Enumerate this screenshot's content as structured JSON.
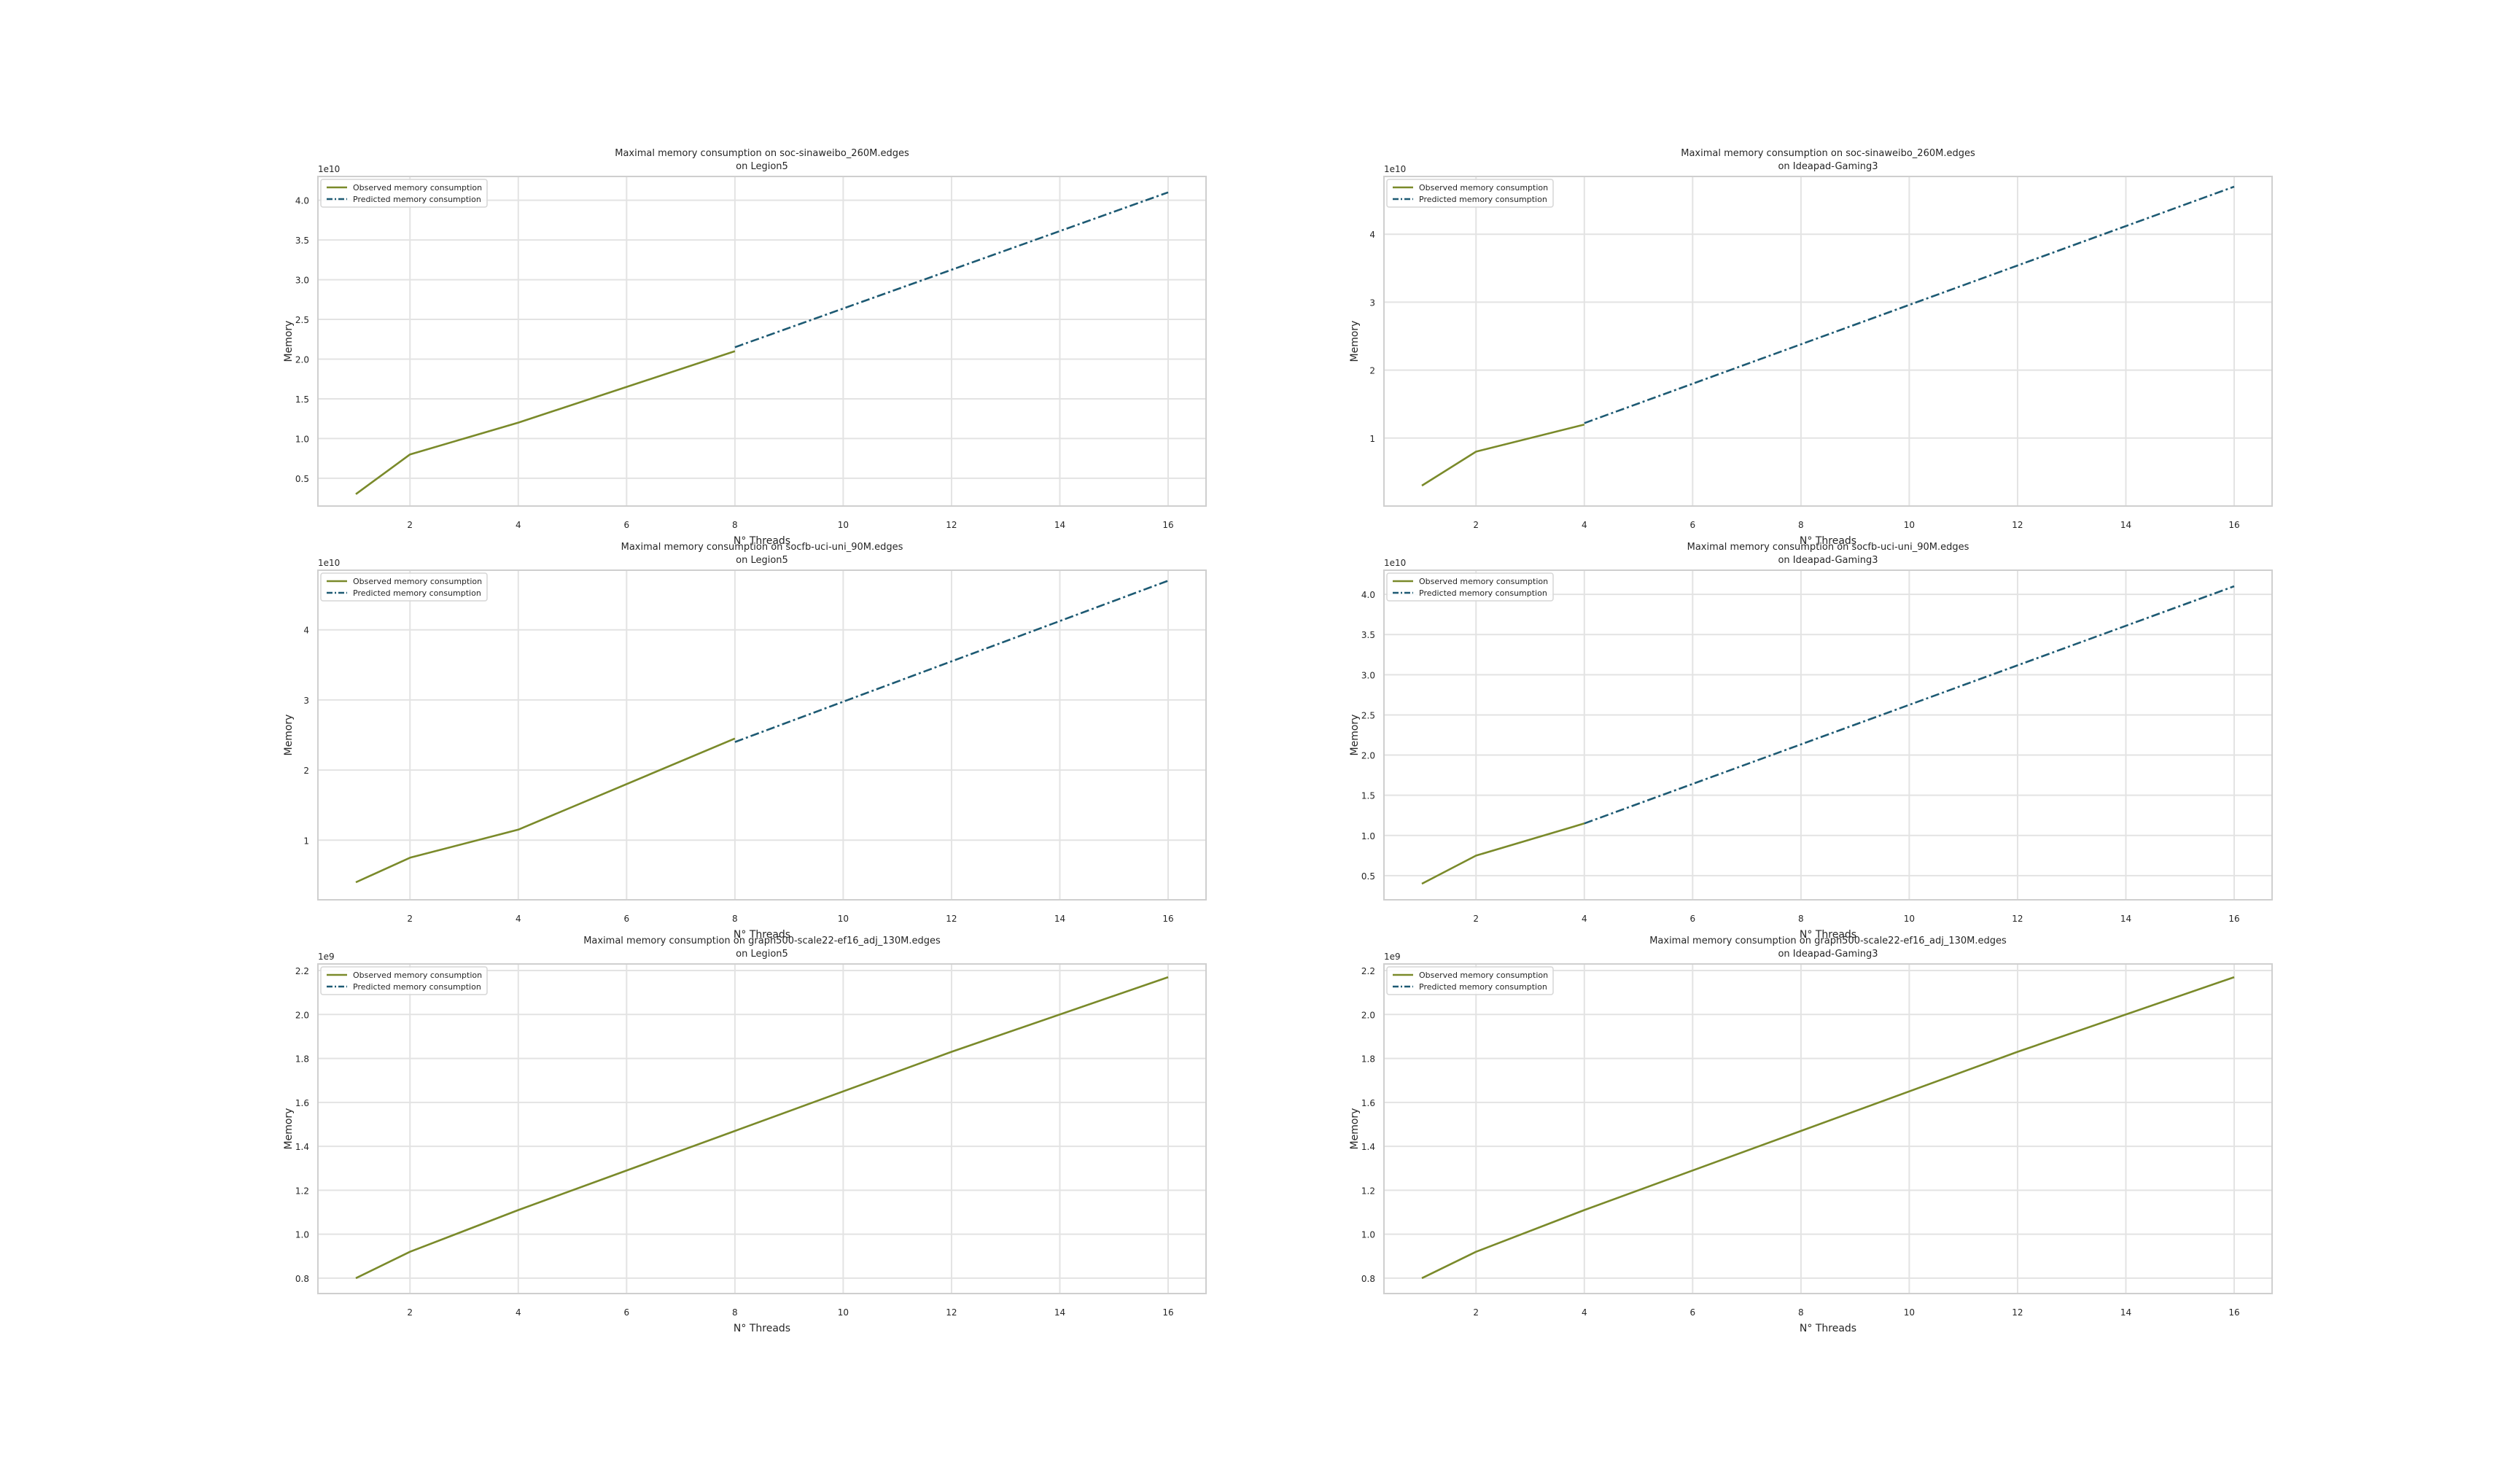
{
  "colors": {
    "observed": "#7a8a2a",
    "predicted": "#1d5a73",
    "grid": "#e3e3e3",
    "frame": "#cfcfcf",
    "text": "#262626"
  },
  "chart_data": [
    {
      "type": "line",
      "title": "Maximal memory consumption on soc-sinaweibo_260M.edges",
      "subtitle": "on Legion5",
      "xlabel": "N° Threads",
      "ylabel": "Memory",
      "offset_label": "1e10",
      "scale": 10000000000.0,
      "xlim": [
        0.3,
        16.7
      ],
      "ylim": [
        0.15,
        4.3
      ],
      "xticks": [
        2,
        4,
        6,
        8,
        10,
        12,
        14,
        16
      ],
      "yticks": [
        0.5,
        1.0,
        1.5,
        2.0,
        2.5,
        3.0,
        3.5,
        4.0
      ],
      "yticklabels": [
        "0.5",
        "1.0",
        "1.5",
        "2.0",
        "2.5",
        "3.0",
        "3.5",
        "4.0"
      ],
      "grid": true,
      "legend": "upper-left",
      "series": [
        {
          "name": "Observed memory consumption",
          "style": "solid",
          "x": [
            1,
            2,
            4,
            8
          ],
          "y": [
            0.3,
            0.8,
            1.2,
            2.1
          ]
        },
        {
          "name": "Predicted memory consumption",
          "style": "dashdot",
          "x": [
            8,
            16
          ],
          "y": [
            2.15,
            4.1
          ]
        }
      ]
    },
    {
      "type": "line",
      "title": "Maximal memory consumption on soc-sinaweibo_260M.edges",
      "subtitle": "on Ideapad-Gaming3",
      "xlabel": "N° Threads",
      "ylabel": "Memory",
      "offset_label": "1e10",
      "scale": 10000000000.0,
      "xlim": [
        0.3,
        16.7
      ],
      "ylim": [
        0.0,
        4.85
      ],
      "xticks": [
        2,
        4,
        6,
        8,
        10,
        12,
        14,
        16
      ],
      "yticks": [
        1,
        2,
        3,
        4
      ],
      "yticklabels": [
        "1",
        "2",
        "3",
        "4"
      ],
      "grid": true,
      "legend": "upper-left",
      "series": [
        {
          "name": "Observed memory consumption",
          "style": "solid",
          "x": [
            1,
            2,
            4
          ],
          "y": [
            0.3,
            0.8,
            1.2
          ]
        },
        {
          "name": "Predicted memory consumption",
          "style": "dashdot",
          "x": [
            4,
            16
          ],
          "y": [
            1.22,
            4.7
          ]
        }
      ]
    },
    {
      "type": "line",
      "title": "Maximal memory consumption on socfb-uci-uni_90M.edges",
      "subtitle": "on Legion5",
      "xlabel": "N° Threads",
      "ylabel": "Memory",
      "offset_label": "1e10",
      "scale": 10000000000.0,
      "xlim": [
        0.3,
        16.7
      ],
      "ylim": [
        0.15,
        4.85
      ],
      "xticks": [
        2,
        4,
        6,
        8,
        10,
        12,
        14,
        16
      ],
      "yticks": [
        1,
        2,
        3,
        4
      ],
      "yticklabels": [
        "1",
        "2",
        "3",
        "4"
      ],
      "grid": true,
      "legend": "upper-left",
      "series": [
        {
          "name": "Observed memory consumption",
          "style": "solid",
          "x": [
            1,
            2,
            4,
            8
          ],
          "y": [
            0.4,
            0.75,
            1.15,
            2.45
          ]
        },
        {
          "name": "Predicted memory consumption",
          "style": "dashdot",
          "x": [
            8,
            16
          ],
          "y": [
            2.4,
            4.7
          ]
        }
      ]
    },
    {
      "type": "line",
      "title": "Maximal memory consumption on socfb-uci-uni_90M.edges",
      "subtitle": "on Ideapad-Gaming3",
      "xlabel": "N° Threads",
      "ylabel": "Memory",
      "offset_label": "1e10",
      "scale": 10000000000.0,
      "xlim": [
        0.3,
        16.7
      ],
      "ylim": [
        0.2,
        4.3
      ],
      "xticks": [
        2,
        4,
        6,
        8,
        10,
        12,
        14,
        16
      ],
      "yticks": [
        0.5,
        1.0,
        1.5,
        2.0,
        2.5,
        3.0,
        3.5,
        4.0
      ],
      "yticklabels": [
        "0.5",
        "1.0",
        "1.5",
        "2.0",
        "2.5",
        "3.0",
        "3.5",
        "4.0"
      ],
      "grid": true,
      "legend": "upper-left",
      "series": [
        {
          "name": "Observed memory consumption",
          "style": "solid",
          "x": [
            1,
            2,
            4
          ],
          "y": [
            0.4,
            0.75,
            1.15
          ]
        },
        {
          "name": "Predicted memory consumption",
          "style": "dashdot",
          "x": [
            4,
            16
          ],
          "y": [
            1.15,
            4.1
          ]
        }
      ]
    },
    {
      "type": "line",
      "title": "Maximal memory consumption on graph500-scale22-ef16_adj_130M.edges",
      "subtitle": "on Legion5",
      "xlabel": "N° Threads",
      "ylabel": "Memory",
      "offset_label": "1e9",
      "scale": 1000000000.0,
      "xlim": [
        0.3,
        16.7
      ],
      "ylim": [
        0.73,
        2.23
      ],
      "xticks": [
        2,
        4,
        6,
        8,
        10,
        12,
        14,
        16
      ],
      "yticks": [
        0.8,
        1.0,
        1.2,
        1.4,
        1.6,
        1.8,
        2.0,
        2.2
      ],
      "yticklabels": [
        "0.8",
        "1.0",
        "1.2",
        "1.4",
        "1.6",
        "1.8",
        "2.0",
        "2.2"
      ],
      "grid": true,
      "legend": "upper-left",
      "series": [
        {
          "name": "Observed memory consumption",
          "style": "solid",
          "x": [
            1,
            2,
            4,
            8,
            12,
            16
          ],
          "y": [
            0.8,
            0.92,
            1.11,
            1.47,
            1.83,
            2.17
          ]
        },
        {
          "name": "Predicted memory consumption",
          "style": "dashdot",
          "x": [],
          "y": []
        }
      ]
    },
    {
      "type": "line",
      "title": "Maximal memory consumption on graph500-scale22-ef16_adj_130M.edges",
      "subtitle": "on Ideapad-Gaming3",
      "xlabel": "N° Threads",
      "ylabel": "Memory",
      "offset_label": "1e9",
      "scale": 1000000000.0,
      "xlim": [
        0.3,
        16.7
      ],
      "ylim": [
        0.73,
        2.23
      ],
      "xticks": [
        2,
        4,
        6,
        8,
        10,
        12,
        14,
        16
      ],
      "yticks": [
        0.8,
        1.0,
        1.2,
        1.4,
        1.6,
        1.8,
        2.0,
        2.2
      ],
      "yticklabels": [
        "0.8",
        "1.0",
        "1.2",
        "1.4",
        "1.6",
        "1.8",
        "2.0",
        "2.2"
      ],
      "grid": true,
      "legend": "upper-left",
      "series": [
        {
          "name": "Observed memory consumption",
          "style": "solid",
          "x": [
            1,
            2,
            4,
            8,
            12,
            16
          ],
          "y": [
            0.8,
            0.92,
            1.11,
            1.47,
            1.83,
            2.17
          ]
        },
        {
          "name": "Predicted memory consumption",
          "style": "dashdot",
          "x": [],
          "y": []
        }
      ]
    }
  ]
}
